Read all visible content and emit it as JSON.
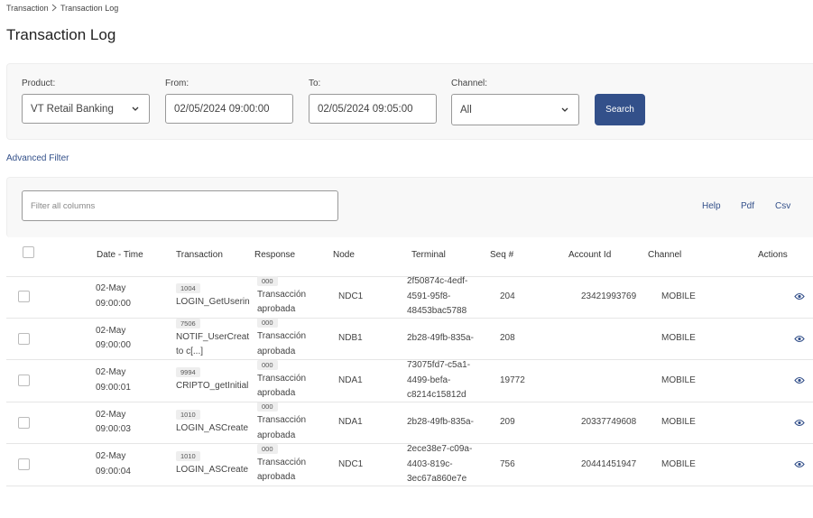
{
  "breadcrumb": [
    "Transaction",
    "Transaction Log"
  ],
  "title": "Transaction Log",
  "filters": [
    {
      "label": "Product:",
      "value": "VT Retail Banking"
    },
    {
      "label": "From:",
      "value": "02/05/2024 09:00:00"
    },
    {
      "label": "To:",
      "value": "02/05/2024 09:05:00"
    },
    {
      "label": "Channel:",
      "value": "All"
    }
  ],
  "search_button": "Search",
  "advanced_filter": "Advanced Filter",
  "toolbar": {
    "filter_placeholder": "Filter all columns",
    "links": [
      "Help",
      "Pdf",
      "Csv"
    ]
  },
  "table": {
    "columns": [
      "Date - Time",
      "Transaction",
      "Response",
      "Node",
      "Terminal",
      "Seq #",
      "Account Id",
      "Channel",
      "Actions"
    ],
    "rows": [
      {
        "date": "02-May",
        "time": "09:00:00",
        "transaction_code": "1004",
        "transaction": "LOGIN_GetUserin",
        "response_code": "000",
        "response": "Transacción aprobada",
        "node": "NDC1",
        "terminal": "2f50874c-4edf-4591-95f8-48453bac5788",
        "seq": "204",
        "account_id": "23421993769",
        "channel": "MOBILE"
      },
      {
        "date": "02-May",
        "time": "09:00:00",
        "transaction_code": "7506",
        "transaction": "NOTIF_UserCreat to c[...]",
        "response_code": "000",
        "response": "Transacción aprobada",
        "node": "NDB1",
        "terminal": "2b28-49fb-835a-",
        "seq": "208",
        "account_id": null,
        "channel": "MOBILE"
      },
      {
        "date": "02-May",
        "time": "09:00:01",
        "transaction_code": "9994",
        "transaction": "CRIPTO_getInitial",
        "response_code": "000",
        "response": "Transacción aprobada",
        "node": "NDA1",
        "terminal": "73075fd7-c5a1-4499-befa-c8214c15812d",
        "seq": "19772",
        "account_id": null,
        "channel": "MOBILE"
      },
      {
        "date": "02-May",
        "time": "09:00:03",
        "transaction_code": "1010",
        "transaction": "LOGIN_ASCreate",
        "response_code": "000",
        "response": "Transacción aprobada",
        "node": "NDA1",
        "terminal": "2b28-49fb-835a-",
        "seq": "209",
        "account_id": "20337749608",
        "channel": "MOBILE"
      },
      {
        "date": "02-May",
        "time": "09:00:04",
        "transaction_code": "1010",
        "transaction": "LOGIN_ASCreate",
        "response_code": "000",
        "response": "Transacción aprobada",
        "node": "NDC1",
        "terminal": "2ece38e7-c09a-4403-819c-3ec67a860e7e",
        "seq": "756",
        "account_id": "20441451947",
        "channel": "MOBILE"
      }
    ]
  }
}
